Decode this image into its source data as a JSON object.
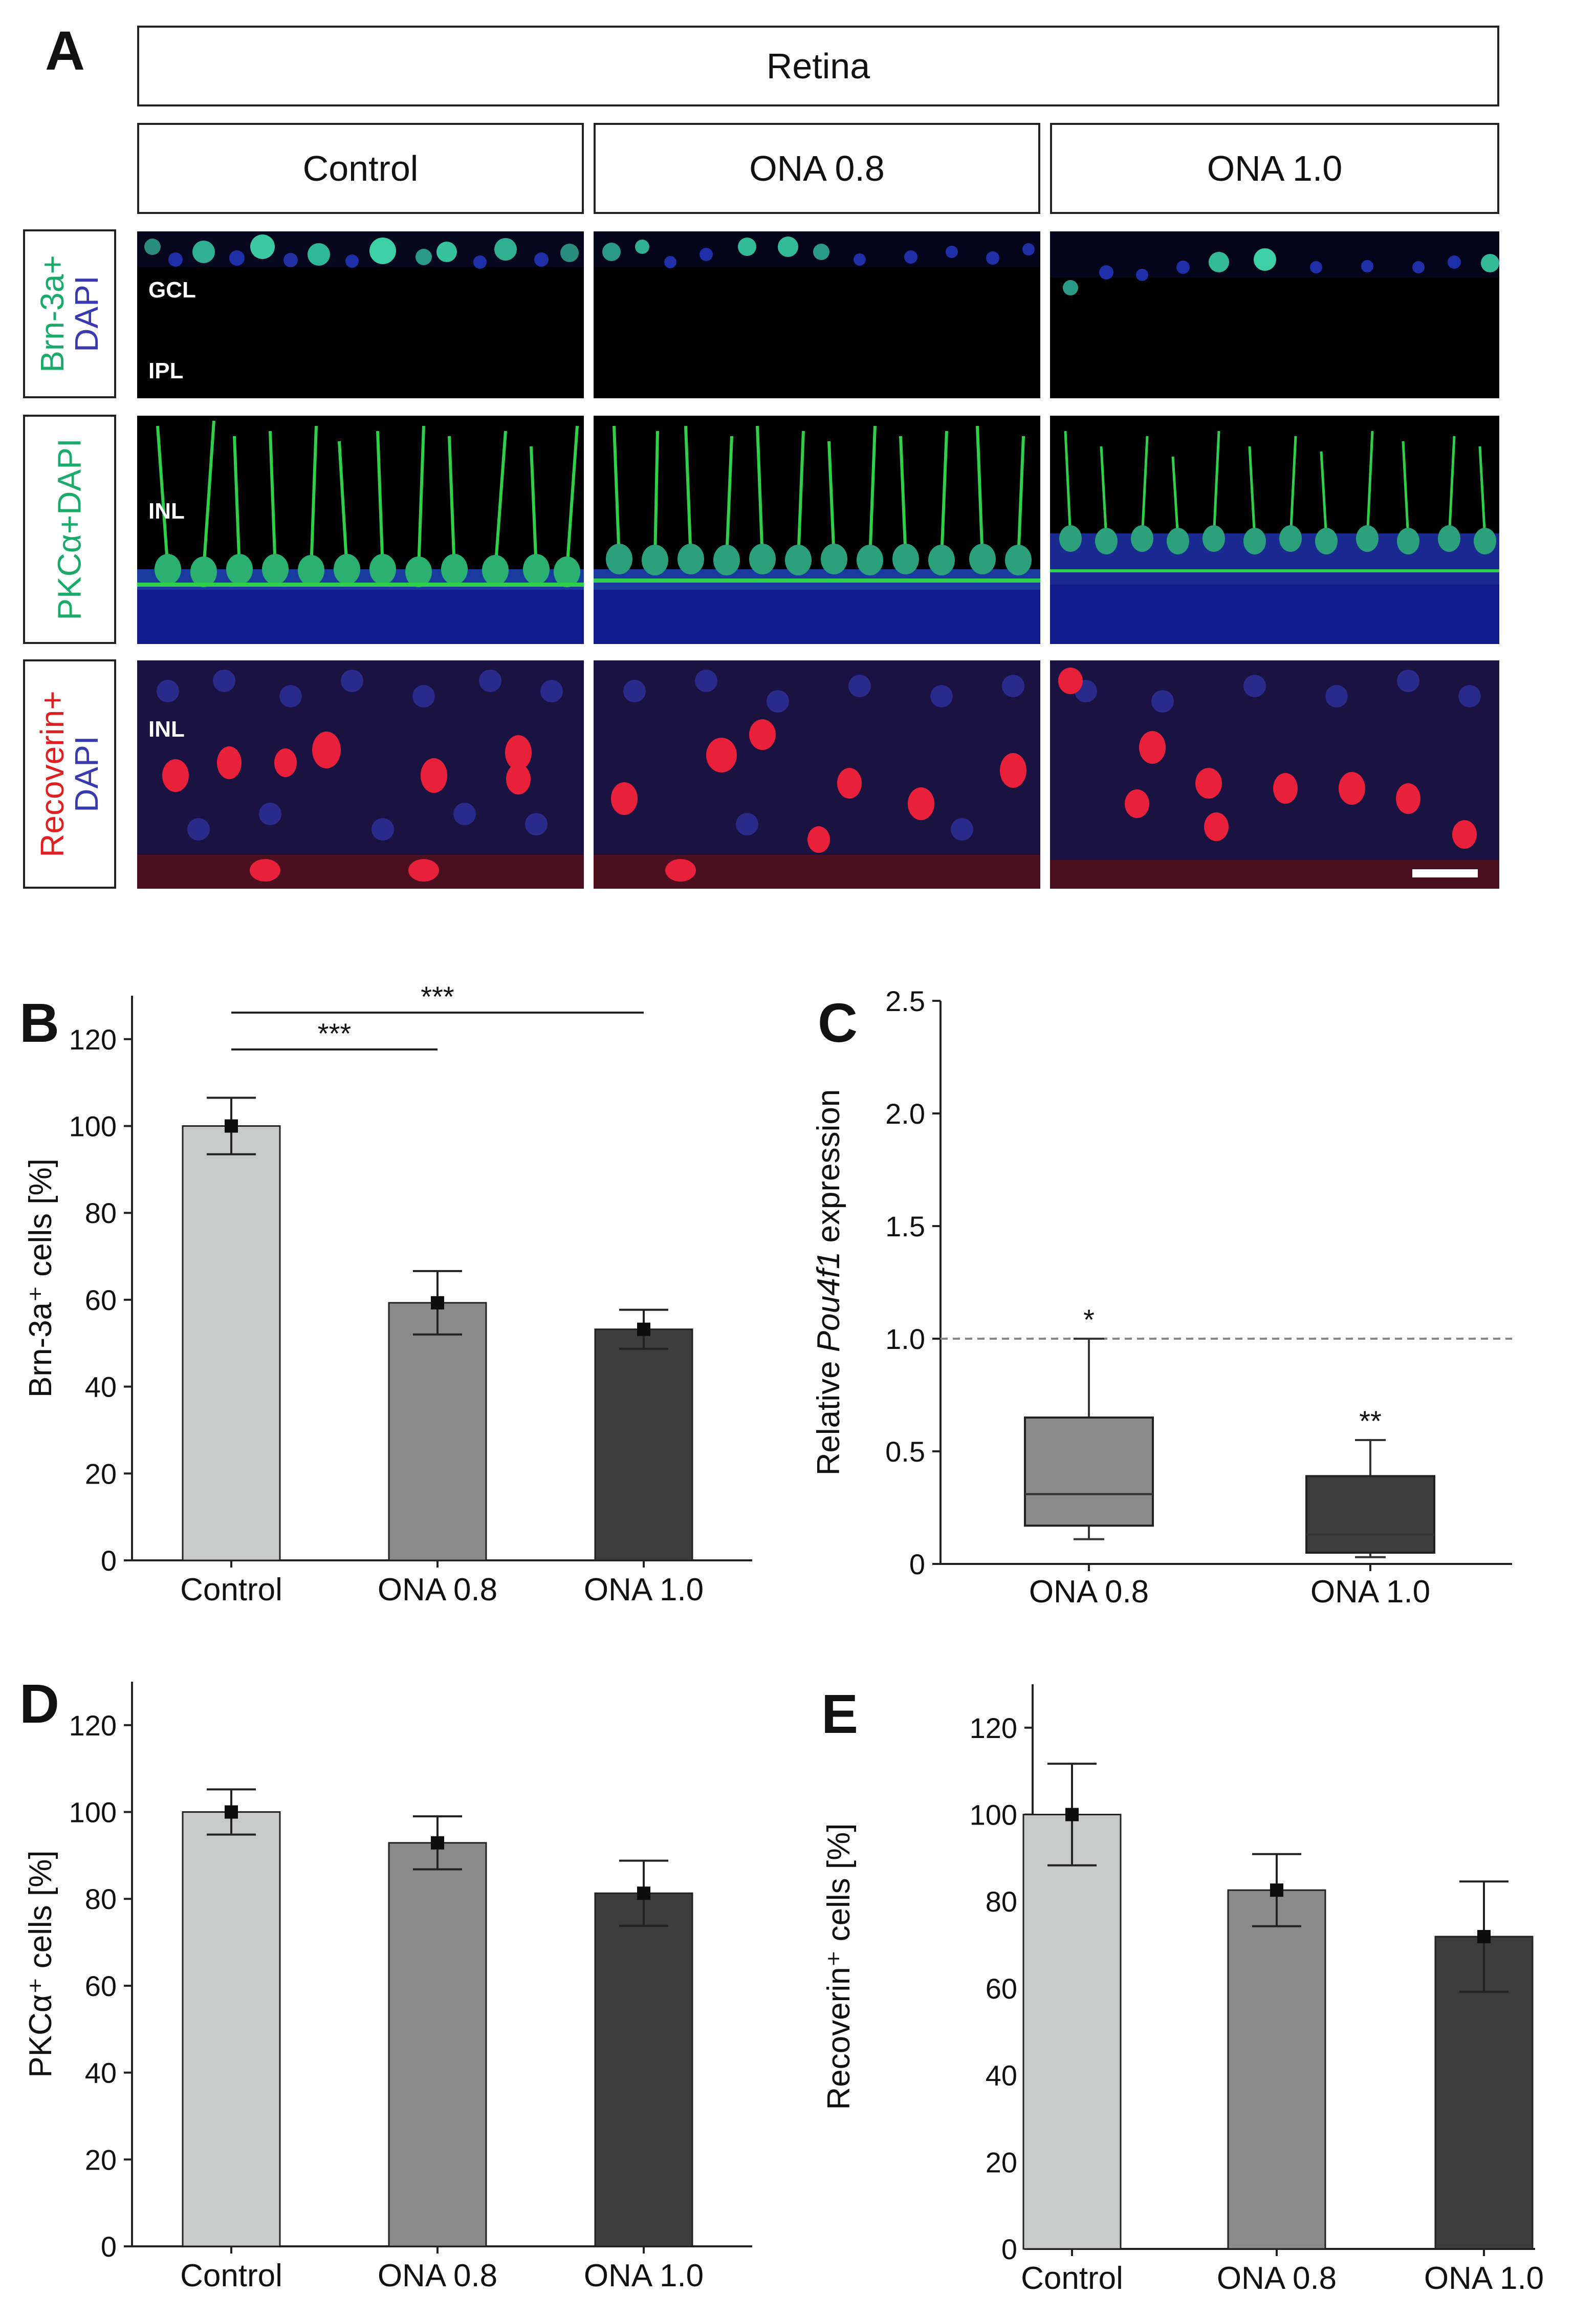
{
  "panel_a": {
    "letter": "A",
    "header": "Retina",
    "columns": [
      "Control",
      "ONA 0.8",
      "ONA 1.0"
    ],
    "rows": [
      {
        "label_lines": [
          {
            "text": "Brn-3a+",
            "color": "#1aaa6a"
          },
          {
            "text": "DAPI",
            "color": "#3a3ab0"
          }
        ],
        "layers": [
          "GCL",
          "IPL"
        ],
        "stain": "green-sparse"
      },
      {
        "label_lines": [
          {
            "text": "PKCα+DAPI",
            "color": "#1aaa6a"
          }
        ],
        "layers": [
          "INL"
        ],
        "stain": "green-bipolar"
      },
      {
        "label_lines": [
          {
            "text": "Recoverin+",
            "color": "#e02020"
          },
          {
            "text": "DAPI",
            "color": "#3a3ab0"
          }
        ],
        "layers": [
          "INL"
        ],
        "stain": "red"
      }
    ]
  },
  "colors": {
    "control": "#c8cac9",
    "ona08": "#8a8a8a",
    "ona10": "#3c3c3c",
    "ptr": "#0d0d0d"
  },
  "chart_data": [
    {
      "id": "B",
      "type": "bar",
      "letter": "B",
      "categories": [
        "Control",
        "ONA 0.8",
        "ONA 1.0"
      ],
      "values": [
        100,
        59.3,
        53.2
      ],
      "errors": [
        6.5,
        7.3,
        4.5
      ],
      "ylabel": "Brn-3a⁺ cells [%]",
      "ylim": [
        0,
        130
      ],
      "yticks": [
        "0",
        "20",
        "40",
        "60",
        "80",
        "100",
        "120"
      ],
      "significance": [
        {
          "from": "Control",
          "to": "ONA 0.8",
          "label": "***"
        },
        {
          "from": "Control",
          "to": "ONA 1.0",
          "label": "***"
        }
      ]
    },
    {
      "id": "C",
      "type": "box",
      "letter": "C",
      "categories": [
        "ONA 0.8",
        "ONA 1.0"
      ],
      "boxes": [
        {
          "min": 0.11,
          "q1": 0.17,
          "median": 0.31,
          "q3": 0.65,
          "max": 1.0,
          "label": "*"
        },
        {
          "min": 0.03,
          "q1": 0.05,
          "median": 0.13,
          "q3": 0.39,
          "max": 0.55,
          "label": "**"
        }
      ],
      "ylabel_parts": [
        "Relative ",
        "Pou4f1",
        " expression"
      ],
      "ylim": [
        0,
        2.5
      ],
      "yticks": [
        "0",
        "0.5",
        "1.0",
        "1.5",
        "2.0",
        "2.5"
      ],
      "reference_line": 1.0
    },
    {
      "id": "D",
      "type": "bar",
      "letter": "D",
      "categories": [
        "Control",
        "ONA 0.8",
        "ONA 1.0"
      ],
      "values": [
        100,
        92.9,
        81.3
      ],
      "errors": [
        5.2,
        6.1,
        7.5
      ],
      "ylabel": "PKCα⁺ cells [%]",
      "ylim": [
        0,
        130
      ],
      "yticks": [
        "0",
        "20",
        "40",
        "60",
        "80",
        "100",
        "120"
      ]
    },
    {
      "id": "E",
      "type": "bar",
      "letter": "E",
      "categories": [
        "Control",
        "ONA 0.8",
        "ONA 1.0"
      ],
      "values": [
        100,
        82.6,
        71.9
      ],
      "errors": [
        11.7,
        8.3,
        12.7
      ],
      "ylabel": "Recoverin⁺ cells [%]",
      "ylim": [
        0,
        130
      ],
      "yticks": [
        "0",
        "20",
        "40",
        "60",
        "80",
        "100",
        "120"
      ]
    }
  ]
}
